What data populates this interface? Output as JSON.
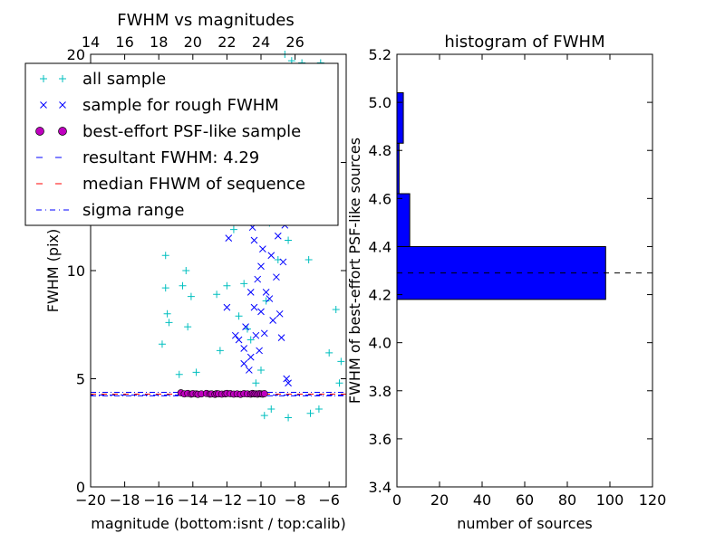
{
  "chart_data": [
    {
      "type": "scatter",
      "title": "FWHM vs magnitudes",
      "xlabel": "magnitude (bottom:isnt / top:calib)",
      "ylabel": "FWHM (pix)",
      "xlim": [
        -20,
        -5
      ],
      "ylim": [
        0,
        20
      ],
      "xticks": [
        "−20",
        "−18",
        "−16",
        "−14",
        "−12",
        "−10",
        "−8",
        "−6"
      ],
      "yticks": [
        "0",
        "5",
        "10",
        "15",
        "20"
      ],
      "top_xticks": [
        "14",
        "16",
        "18",
        "20",
        "22",
        "24",
        "26"
      ],
      "resultant_fwhm": 4.29,
      "sigma_range": [
        4.21,
        4.37
      ],
      "legend_location": "upper-left",
      "legend": [
        {
          "label": "all sample",
          "marker": "plus",
          "color": "#00bfbf"
        },
        {
          "label": "sample for rough FWHM",
          "marker": "x",
          "color": "#0000ff"
        },
        {
          "label": "best-effort PSF-like sample",
          "marker": "circle",
          "color": "#bf00bf"
        },
        {
          "label": "resultant FWHM: 4.29",
          "marker": "dashed",
          "color": "#0000ff"
        },
        {
          "label": "median FHWM of sequence",
          "marker": "dashed",
          "color": "#ff0000"
        },
        {
          "label": "sigma range",
          "marker": "dashdot",
          "color": "#0000ff"
        }
      ],
      "series": [
        {
          "name": "all sample",
          "points": [
            [
              -15.8,
              6.6
            ],
            [
              -15.6,
              10.7
            ],
            [
              -15.5,
              8.0
            ],
            [
              -15.6,
              9.2
            ],
            [
              -15.4,
              7.6
            ],
            [
              -14.9,
              12.5
            ],
            [
              -14.6,
              9.3
            ],
            [
              -14.4,
              10.0
            ],
            [
              -14.3,
              7.4
            ],
            [
              -14.8,
              5.2
            ],
            [
              -14.1,
              8.8
            ],
            [
              -13.8,
              5.3
            ],
            [
              -12.6,
              8.9
            ],
            [
              -12.4,
              6.3
            ],
            [
              -12.0,
              9.3
            ],
            [
              -11.6,
              11.9
            ],
            [
              -11.3,
              7.9
            ],
            [
              -11.0,
              9.4
            ],
            [
              -10.8,
              7.3
            ],
            [
              -10.6,
              6.8
            ],
            [
              -10.3,
              4.8
            ],
            [
              -10.0,
              5.4
            ],
            [
              -9.7,
              8.6
            ],
            [
              -9.5,
              12.2
            ],
            [
              -9.3,
              16.8
            ],
            [
              -9.0,
              10.5
            ],
            [
              -8.8,
              14.5
            ],
            [
              -8.6,
              20.0
            ],
            [
              -8.4,
              11.4
            ],
            [
              -8.2,
              19.7
            ],
            [
              -8.0,
              17.0
            ],
            [
              -7.8,
              13.5
            ],
            [
              -7.6,
              19.6
            ],
            [
              -7.4,
              15.9
            ],
            [
              -7.2,
              10.5
            ],
            [
              -7.0,
              19.0
            ],
            [
              -6.8,
              14.8
            ],
            [
              -6.5,
              19.6
            ],
            [
              -6.3,
              12.6
            ],
            [
              -6.0,
              6.2
            ],
            [
              -5.6,
              8.2
            ],
            [
              -5.4,
              4.8
            ],
            [
              -5.3,
              5.8
            ],
            [
              -9.8,
              3.3
            ],
            [
              -9.4,
              3.6
            ],
            [
              -8.4,
              3.2
            ],
            [
              -7.1,
              3.4
            ],
            [
              -6.6,
              3.6
            ]
          ]
        },
        {
          "name": "sample for rough FWHM",
          "points": [
            [
              -11.9,
              11.5
            ],
            [
              -12.0,
              8.3
            ],
            [
              -11.5,
              7.0
            ],
            [
              -11.3,
              6.8
            ],
            [
              -11.0,
              5.7
            ],
            [
              -11.0,
              6.4
            ],
            [
              -10.9,
              7.4
            ],
            [
              -10.7,
              5.4
            ],
            [
              -10.6,
              6.0
            ],
            [
              -10.6,
              9.0
            ],
            [
              -10.5,
              12.0
            ],
            [
              -10.4,
              8.3
            ],
            [
              -10.4,
              11.4
            ],
            [
              -10.3,
              7.0
            ],
            [
              -10.2,
              9.6
            ],
            [
              -10.2,
              12.8
            ],
            [
              -10.1,
              6.3
            ],
            [
              -10.0,
              8.1
            ],
            [
              -10.0,
              10.2
            ],
            [
              -9.9,
              11.0
            ],
            [
              -9.9,
              13.5
            ],
            [
              -9.8,
              7.1
            ],
            [
              -9.7,
              9.0
            ],
            [
              -9.6,
              12.3
            ],
            [
              -9.5,
              8.7
            ],
            [
              -9.4,
              10.7
            ],
            [
              -9.3,
              7.7
            ],
            [
              -9.2,
              12.9
            ],
            [
              -9.1,
              9.7
            ],
            [
              -9.0,
              11.6
            ],
            [
              -8.9,
              8.0
            ],
            [
              -8.8,
              6.9
            ],
            [
              -8.7,
              10.4
            ],
            [
              -8.6,
              12.1
            ],
            [
              -8.5,
              5.0
            ],
            [
              -8.4,
              4.8
            ]
          ]
        },
        {
          "name": "best-effort PSF-like sample",
          "points": [
            [
              -14.7,
              4.35
            ],
            [
              -14.5,
              4.3
            ],
            [
              -14.3,
              4.32
            ],
            [
              -14.1,
              4.29
            ],
            [
              -14.0,
              4.31
            ],
            [
              -13.8,
              4.3
            ],
            [
              -13.7,
              4.28
            ],
            [
              -13.5,
              4.3
            ],
            [
              -13.2,
              4.32
            ],
            [
              -13.0,
              4.29
            ],
            [
              -12.9,
              4.3
            ],
            [
              -12.7,
              4.28
            ],
            [
              -12.6,
              4.31
            ],
            [
              -12.5,
              4.3
            ],
            [
              -12.3,
              4.29
            ],
            [
              -12.1,
              4.3
            ],
            [
              -12.0,
              4.32
            ],
            [
              -11.8,
              4.31
            ],
            [
              -11.6,
              4.29
            ],
            [
              -11.4,
              4.3
            ],
            [
              -11.2,
              4.28
            ],
            [
              -11.0,
              4.31
            ],
            [
              -10.8,
              4.3
            ],
            [
              -10.6,
              4.29
            ],
            [
              -10.5,
              4.32
            ],
            [
              -10.4,
              4.3
            ],
            [
              -10.3,
              4.3
            ],
            [
              -10.2,
              4.29
            ],
            [
              -10.1,
              4.31
            ],
            [
              -10.0,
              4.3
            ],
            [
              -9.9,
              4.29
            ],
            [
              -9.8,
              4.31
            ]
          ]
        }
      ]
    },
    {
      "type": "bar",
      "orientation": "horizontal",
      "title": "histogram of FWHM",
      "xlabel": "number of sources",
      "ylabel": "FWHM of best-effort PSF-like sources",
      "xlim": [
        0,
        120
      ],
      "ylim": [
        3.4,
        5.2
      ],
      "xticks": [
        "0",
        "20",
        "40",
        "60",
        "80",
        "100",
        "120"
      ],
      "yticks": [
        "3.4",
        "3.6",
        "3.8",
        "4.0",
        "4.2",
        "4.4",
        "4.6",
        "4.8",
        "5.0",
        "5.2"
      ],
      "bins": [
        {
          "low": 4.18,
          "high": 4.4,
          "count": 98
        },
        {
          "low": 4.4,
          "high": 4.62,
          "count": 6
        },
        {
          "low": 4.62,
          "high": 4.83,
          "count": 1
        },
        {
          "low": 4.83,
          "high": 5.04,
          "count": 3
        }
      ],
      "bar_color": "#0000ff",
      "reference_line": 4.29
    }
  ]
}
